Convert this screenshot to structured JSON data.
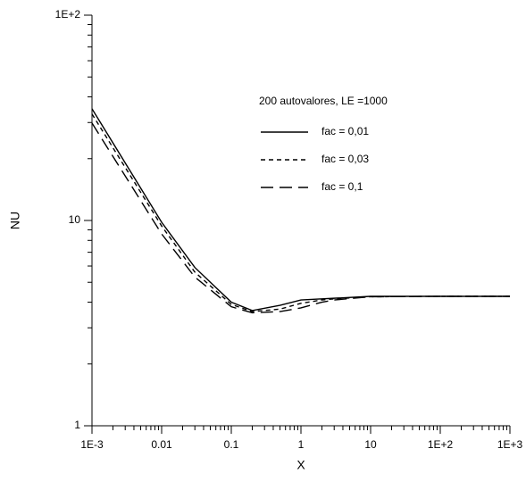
{
  "chart_data": {
    "type": "line",
    "xlabel": "X",
    "ylabel": "NU",
    "legend_title": "200 autovalores, LE =1000",
    "xscale": "log",
    "yscale": "log",
    "xlim": [
      0.001,
      1000
    ],
    "ylim": [
      1,
      100
    ],
    "xticks": [
      {
        "value": 0.001,
        "label": "1E-3"
      },
      0.01,
      0.1,
      1,
      10,
      {
        "value": 100,
        "label": "1E+2"
      },
      {
        "value": 1000,
        "label": "1E+3"
      }
    ],
    "yticks": [
      1,
      10,
      {
        "value": 100,
        "label": "1E+2"
      }
    ],
    "x": [
      0.001,
      0.01,
      0.03,
      0.1,
      0.2,
      0.5,
      1,
      2,
      3,
      10,
      100,
      1000
    ],
    "series": [
      {
        "name": "fac = 0,01",
        "color": "#000000",
        "linestyle": "solid",
        "values": [
          35,
          9.8,
          5.9,
          4.0,
          3.64,
          3.86,
          4.1,
          4.15,
          4.18,
          4.27,
          4.27,
          4.27
        ]
      },
      {
        "name": "fac = 0,03",
        "color": "#000000",
        "linestyle": "dashed",
        "values": [
          33,
          9.4,
          5.6,
          3.9,
          3.6,
          3.7,
          3.95,
          4.1,
          4.15,
          4.25,
          4.27,
          4.27
        ]
      },
      {
        "name": "fac = 0,1",
        "color": "#000000",
        "linestyle": "longdash",
        "values": [
          29.8,
          8.6,
          5.3,
          3.8,
          3.55,
          3.6,
          3.75,
          4.0,
          4.1,
          4.25,
          4.27,
          4.27
        ]
      }
    ]
  }
}
